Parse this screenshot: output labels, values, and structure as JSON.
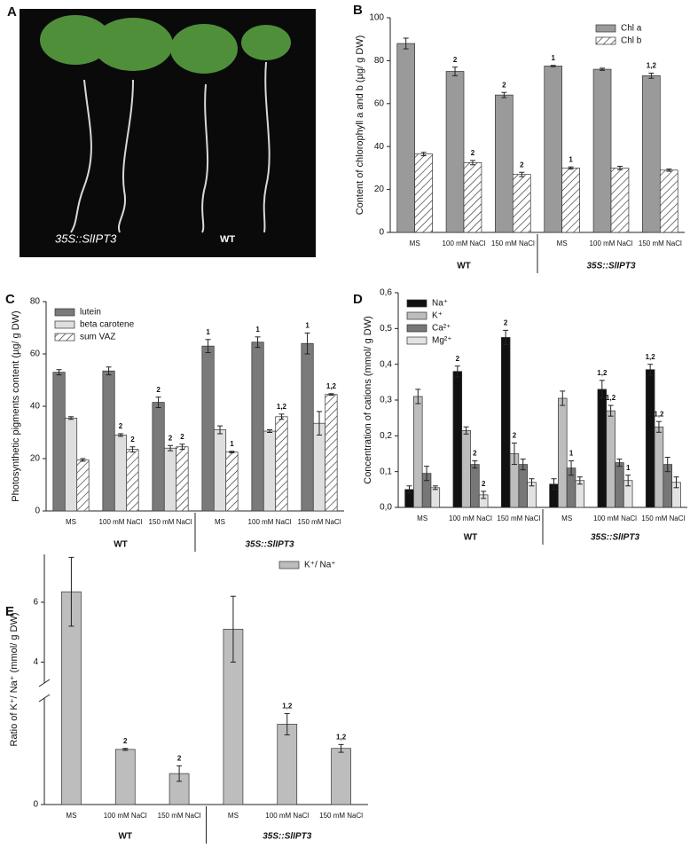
{
  "panel_a": {
    "label": "A",
    "captions": [
      "35S::SlIPT3",
      "WT"
    ]
  },
  "chart_data": [
    {
      "type": "bar",
      "panel_label": "B",
      "y_label": "Content of chlorophyll a and b (µg/ g DW)",
      "categories": [
        "MS",
        "100 mM NaCl",
        "150 mM NaCl",
        "MS",
        "100 mM NaCl",
        "150 mM NaCl"
      ],
      "groups": [
        "WT",
        "35S::SlIPT3"
      ],
      "ylim": [
        0,
        100
      ],
      "yticks": [
        0,
        20,
        40,
        60,
        80,
        100
      ],
      "legend": "upper right",
      "series": [
        {
          "name": "Chl a",
          "color": "#9a9a9a",
          "values": [
            88,
            75,
            64,
            77.5,
            76,
            73
          ],
          "errors": [
            2.5,
            2,
            1.2,
            0.3,
            0.5,
            1.2
          ],
          "labels": [
            null,
            "2",
            "2",
            "1",
            null,
            "1,2"
          ]
        },
        {
          "name": "Chl b",
          "color": "#ffffff",
          "pattern": "hatch",
          "values": [
            36.5,
            32.5,
            27,
            30,
            30,
            29
          ],
          "errors": [
            0.8,
            1,
            1,
            0.5,
            0.8,
            0.5
          ],
          "labels": [
            null,
            "2",
            "2",
            "1",
            null,
            null
          ]
        }
      ]
    },
    {
      "type": "bar",
      "panel_label": "C",
      "y_label": "Photosynthetic pigments content (µg/ g DW)",
      "categories": [
        "MS",
        "100 mM NaCl",
        "150 mM NaCl",
        "MS",
        "100 mM NaCl",
        "150 mM NaCl"
      ],
      "groups": [
        "WT",
        "35S::SlIPT3"
      ],
      "ylim": [
        0,
        80
      ],
      "yticks": [
        0,
        20,
        40,
        60,
        80
      ],
      "legend": "upper left",
      "series": [
        {
          "name": "lutein",
          "color": "#7a7a7a",
          "values": [
            53,
            53.5,
            41.5,
            63,
            64.5,
            64
          ],
          "errors": [
            1,
            1.5,
            2,
            2.5,
            2,
            4
          ],
          "labels": [
            null,
            null,
            "2",
            "1",
            "1",
            "1"
          ]
        },
        {
          "name": "beta carotene",
          "color": "#dedede",
          "values": [
            35.5,
            29,
            24,
            31,
            30.5,
            33.5
          ],
          "errors": [
            0.5,
            0.5,
            1,
            1.5,
            0.5,
            4.5
          ],
          "labels": [
            null,
            "2",
            "2",
            null,
            null,
            null
          ]
        },
        {
          "name": "sum VAZ",
          "color": "#ffffff",
          "pattern": "hatch",
          "values": [
            19.5,
            23.5,
            24.5,
            22.5,
            36,
            44.5
          ],
          "errors": [
            0.5,
            1,
            1,
            0.3,
            1,
            0.3
          ],
          "labels": [
            null,
            "2",
            "2",
            "1",
            "1,2",
            "1,2"
          ]
        }
      ]
    },
    {
      "type": "bar",
      "panel_label": "D",
      "y_label": "Concentration of cations (mmol/ g DW)",
      "categories": [
        "MS",
        "100 mM NaCl",
        "150 mM NaCl",
        "MS",
        "100 mM NaCl",
        "150 mM NaCl"
      ],
      "groups": [
        "WT",
        "35S::SlIPT3"
      ],
      "ylim": [
        0,
        0.6
      ],
      "yticks": [
        {
          "value": 0,
          "label": "0,0"
        },
        {
          "value": 0.1,
          "label": "0,1"
        },
        {
          "value": 0.2,
          "label": "0,2"
        },
        {
          "value": 0.3,
          "label": "0,3"
        },
        {
          "value": 0.4,
          "label": "0,4"
        },
        {
          "value": 0.5,
          "label": "0,5"
        },
        {
          "value": 0.6,
          "label": "0,6"
        }
      ],
      "legend": "upper left",
      "series": [
        {
          "name": "Na⁺",
          "color": "#111111",
          "values": [
            0.05,
            0.38,
            0.475,
            0.065,
            0.33,
            0.385
          ],
          "errors": [
            0.01,
            0.015,
            0.02,
            0.015,
            0.025,
            0.015
          ],
          "labels": [
            null,
            "2",
            "2",
            null,
            "1,2",
            "1,2"
          ]
        },
        {
          "name": "K⁺",
          "color": "#bdbdbd",
          "values": [
            0.31,
            0.215,
            0.15,
            0.305,
            0.27,
            0.225
          ],
          "errors": [
            0.02,
            0.01,
            0.03,
            0.02,
            0.015,
            0.015
          ],
          "labels": [
            null,
            null,
            "2",
            null,
            "1,2",
            "1,2"
          ]
        },
        {
          "name": "Ca²⁺",
          "color": "#777777",
          "values": [
            0.095,
            0.12,
            0.12,
            0.11,
            0.125,
            0.12
          ],
          "errors": [
            0.02,
            0.01,
            0.015,
            0.02,
            0.01,
            0.02
          ],
          "labels": [
            null,
            "2",
            null,
            "1",
            null,
            null
          ]
        },
        {
          "name": "Mg²⁺",
          "color": "#e2e2e2",
          "values": [
            0.055,
            0.035,
            0.07,
            0.075,
            0.075,
            0.07
          ],
          "errors": [
            0.005,
            0.01,
            0.01,
            0.01,
            0.015,
            0.015
          ],
          "labels": [
            null,
            "2",
            null,
            null,
            "1",
            null
          ]
        }
      ]
    },
    {
      "type": "broken_bar",
      "panel_label": "E",
      "y_label": "Ratio of K⁺/ Na⁺ (mmol/ g DW)",
      "categories": [
        "MS",
        "100 mM NaCl",
        "150 mM NaCl",
        "MS",
        "100 mM NaCl",
        "150 mM NaCl"
      ],
      "groups": [
        "WT",
        "35S::SlIPT3"
      ],
      "ylim": [
        0,
        7.6
      ],
      "axis_break": [
        1.1,
        3.3
      ],
      "yticks": [
        0,
        4,
        6
      ],
      "legend": "upper right",
      "series": [
        {
          "name": "K⁺/ Na⁺",
          "color": "#bdbdbd",
          "values": [
            6.35,
            0.57,
            0.32,
            5.1,
            0.83,
            0.58
          ],
          "errors": [
            1.15,
            0.01,
            0.08,
            1.1,
            0.11,
            0.04
          ],
          "labels": [
            null,
            "2",
            "2",
            null,
            "1,2",
            "1,2"
          ]
        }
      ]
    }
  ]
}
